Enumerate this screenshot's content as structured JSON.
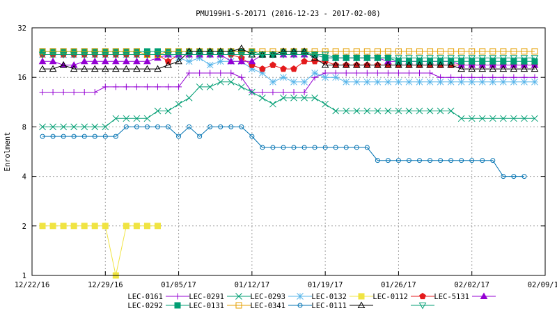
{
  "chart_data": {
    "type": "line",
    "title": "PMU199H1-S-20171 (2016-12-23 - 2017-02-08)",
    "xlabel": "",
    "ylabel": "Enrolment",
    "y_scale": "log2",
    "ylim": [
      1,
      32
    ],
    "xlim": [
      "2016-12-22",
      "2017-02-09"
    ],
    "x_ticks": [
      "12/22/16",
      "12/29/16",
      "01/05/17",
      "01/12/17",
      "01/19/17",
      "01/26/17",
      "02/02/17",
      "02/09/17"
    ],
    "y_ticks": [
      "1",
      "2",
      "4",
      "8",
      "16",
      "32"
    ],
    "grid": true,
    "legend_position": "bottom",
    "series": [
      {
        "name": "LEC-0161",
        "color": "#9400d3",
        "marker": "plus",
        "points": [
          [
            "2016-12-23",
            13
          ],
          [
            "2016-12-28",
            13
          ],
          [
            "2016-12-29",
            14
          ],
          [
            "2017-01-05",
            14
          ],
          [
            "2017-01-06",
            17
          ],
          [
            "2017-01-11",
            16
          ],
          [
            "2017-01-12",
            13
          ],
          [
            "2017-01-14",
            13
          ],
          [
            "2017-01-18",
            16
          ],
          [
            "2017-01-19",
            17
          ],
          [
            "2017-01-29",
            17
          ],
          [
            "2017-01-30",
            16
          ],
          [
            "2017-02-08",
            16
          ]
        ]
      },
      {
        "name": "LEC-0291",
        "color": "#009e73",
        "marker": "x",
        "points": [
          [
            "2016-12-23",
            8
          ],
          [
            "2016-12-29",
            8
          ],
          [
            "2016-12-30",
            9
          ],
          [
            "2017-01-02",
            9
          ],
          [
            "2017-01-03",
            10
          ],
          [
            "2017-01-04",
            10
          ],
          [
            "2017-01-05",
            11
          ],
          [
            "2017-01-06",
            12
          ],
          [
            "2017-01-07",
            14
          ],
          [
            "2017-01-08",
            14
          ],
          [
            "2017-01-09",
            15
          ],
          [
            "2017-01-10",
            15
          ],
          [
            "2017-01-11",
            14
          ],
          [
            "2017-01-12",
            13
          ],
          [
            "2017-01-13",
            12
          ],
          [
            "2017-01-14",
            11
          ],
          [
            "2017-01-15",
            12
          ],
          [
            "2017-01-18",
            12
          ],
          [
            "2017-01-19",
            11
          ],
          [
            "2017-01-20",
            10
          ],
          [
            "2017-01-31",
            10
          ],
          [
            "2017-02-01",
            9
          ],
          [
            "2017-02-08",
            9
          ]
        ]
      },
      {
        "name": "LEC-0293",
        "color": "#56b4e9",
        "marker": "star",
        "points": [
          [
            "2016-12-23",
            22
          ],
          [
            "2017-01-04",
            22
          ],
          [
            "2017-01-05",
            21
          ],
          [
            "2017-01-06",
            20
          ],
          [
            "2017-01-07",
            21
          ],
          [
            "2017-01-08",
            19
          ],
          [
            "2017-01-09",
            20
          ],
          [
            "2017-01-10",
            20
          ],
          [
            "2017-01-12",
            18
          ],
          [
            "2017-01-13",
            17
          ],
          [
            "2017-01-14",
            15
          ],
          [
            "2017-01-15",
            16
          ],
          [
            "2017-01-16",
            15
          ],
          [
            "2017-01-17",
            15
          ],
          [
            "2017-01-18",
            17
          ],
          [
            "2017-01-19",
            16
          ],
          [
            "2017-01-20",
            16
          ],
          [
            "2017-01-21",
            15
          ],
          [
            "2017-02-08",
            15
          ]
        ]
      },
      {
        "name": "LEC-0132",
        "color": "#f0e442",
        "marker": "filled-square",
        "points": [
          [
            "2016-12-23",
            2
          ],
          [
            "2016-12-29",
            2
          ],
          [
            "2016-12-30",
            1
          ],
          [
            "2016-12-31",
            2
          ],
          [
            "2017-01-03",
            2
          ]
        ]
      },
      {
        "name": "LEC-0112",
        "color": "#e41a1c",
        "marker": "filled-pentagon",
        "points": [
          [
            "2016-12-23",
            22
          ],
          [
            "2017-01-03",
            22
          ],
          [
            "2017-01-04",
            20
          ],
          [
            "2017-01-05",
            22
          ],
          [
            "2017-01-10",
            22
          ],
          [
            "2017-01-11",
            21
          ],
          [
            "2017-01-12",
            19
          ],
          [
            "2017-01-13",
            18
          ],
          [
            "2017-01-14",
            19
          ],
          [
            "2017-01-15",
            18
          ],
          [
            "2017-01-16",
            18
          ],
          [
            "2017-01-17",
            20
          ],
          [
            "2017-01-18",
            20
          ],
          [
            "2017-01-20",
            19
          ],
          [
            "2017-02-08",
            19
          ]
        ]
      },
      {
        "name": "LEC-5131",
        "color": "#9400d3",
        "marker": "filled-triangle",
        "points": [
          [
            "2016-12-23",
            20
          ],
          [
            "2016-12-25",
            19
          ],
          [
            "2016-12-26",
            19
          ],
          [
            "2016-12-27",
            20
          ],
          [
            "2017-01-02",
            20
          ],
          [
            "2017-01-03",
            21
          ],
          [
            "2017-01-04",
            22
          ],
          [
            "2017-01-09",
            22
          ],
          [
            "2017-01-10",
            20
          ],
          [
            "2017-01-12",
            20
          ],
          [
            "2017-01-13",
            22
          ],
          [
            "2017-01-15",
            22
          ],
          [
            "2017-01-19",
            21
          ],
          [
            "2017-01-24",
            21
          ],
          [
            "2017-01-25",
            20
          ],
          [
            "2017-01-31",
            20
          ],
          [
            "2017-02-01",
            19
          ],
          [
            "2017-02-08",
            19
          ]
        ]
      },
      {
        "name": "LEC-0292",
        "color": "#009e73",
        "marker": "filled-square",
        "points": [
          [
            "2016-12-23",
            23
          ],
          [
            "2017-01-12",
            23
          ],
          [
            "2017-01-13",
            22
          ],
          [
            "2017-01-14",
            22
          ],
          [
            "2017-01-15",
            23
          ],
          [
            "2017-01-17",
            23
          ],
          [
            "2017-01-18",
            22
          ],
          [
            "2017-01-19",
            21
          ],
          [
            "2017-01-25",
            21
          ],
          [
            "2017-01-26",
            20
          ],
          [
            "2017-02-08",
            20
          ]
        ]
      },
      {
        "name": "LEC-0131",
        "color": "#e69f00",
        "marker": "square",
        "points": [
          [
            "2016-12-23",
            23
          ],
          [
            "2017-01-01",
            23
          ],
          [
            "2017-01-02",
            22
          ],
          [
            "2017-01-03",
            22
          ],
          [
            "2017-01-04",
            23
          ],
          [
            "2017-02-08",
            23
          ]
        ]
      },
      {
        "name": "LEC-0341",
        "color": "#0072b2",
        "marker": "circle",
        "points": [
          [
            "2016-12-23",
            7
          ],
          [
            "2016-12-30",
            7
          ],
          [
            "2016-12-31",
            8
          ],
          [
            "2017-01-04",
            8
          ],
          [
            "2017-01-05",
            7
          ],
          [
            "2017-01-06",
            8
          ],
          [
            "2017-01-07",
            7
          ],
          [
            "2017-01-08",
            8
          ],
          [
            "2017-01-11",
            8
          ],
          [
            "2017-01-12",
            7
          ],
          [
            "2017-01-13",
            6
          ],
          [
            "2017-01-23",
            6
          ],
          [
            "2017-01-24",
            5
          ],
          [
            "2017-02-04",
            5
          ],
          [
            "2017-02-05",
            4
          ],
          [
            "2017-02-07",
            4
          ]
        ]
      },
      {
        "name": "LEC-0111",
        "color": "#000000",
        "marker": "triangle",
        "points": [
          [
            "2016-12-23",
            18
          ],
          [
            "2016-12-24",
            18
          ],
          [
            "2016-12-25",
            19
          ],
          [
            "2016-12-26",
            18
          ],
          [
            "2017-01-03",
            18
          ],
          [
            "2017-01-04",
            19
          ],
          [
            "2017-01-05",
            20
          ],
          [
            "2017-01-06",
            23
          ],
          [
            "2017-01-07",
            23
          ],
          [
            "2017-01-11",
            24
          ],
          [
            "2017-01-12",
            22
          ],
          [
            "2017-01-13",
            22
          ],
          [
            "2017-01-14",
            22
          ],
          [
            "2017-01-15",
            23
          ],
          [
            "2017-01-17",
            23
          ],
          [
            "2017-01-18",
            21
          ],
          [
            "2017-01-19",
            19
          ],
          [
            "2017-01-31",
            19
          ],
          [
            "2017-02-01",
            18
          ],
          [
            "2017-02-08",
            18
          ]
        ]
      },
      {
        "name": "",
        "color": "#009e73",
        "marker": "down-triangle",
        "points": [
          [
            "2016-12-23",
            22
          ],
          [
            "2017-01-19",
            22
          ],
          [
            "2017-01-20",
            21
          ],
          [
            "2017-02-08",
            21
          ]
        ]
      }
    ]
  }
}
